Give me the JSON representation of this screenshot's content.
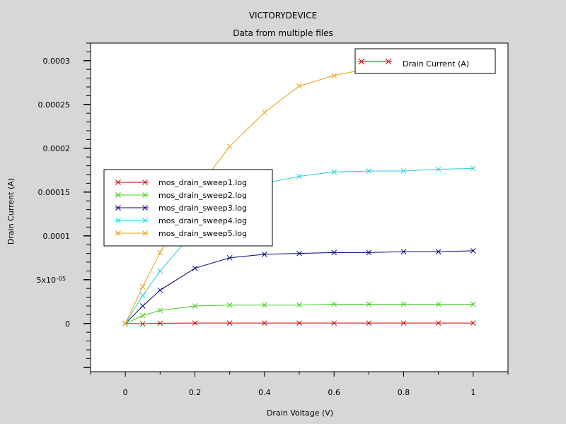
{
  "chart_data": {
    "type": "line",
    "title": "VICTORYDEVICE",
    "subtitle": "Data from multiple files",
    "xlabel": "Drain Voltage (V)",
    "ylabel": "Drain Current (A)",
    "xlim": [
      -0.1,
      1.1
    ],
    "ylim": [
      -5.5e-05,
      0.00032
    ],
    "x_ticks": [
      0,
      0.2,
      0.4,
      0.6,
      0.8,
      1
    ],
    "x_tick_labels": [
      "0",
      "0.2",
      "0.4",
      "0.6",
      "0.8",
      "1"
    ],
    "y_ticks": [
      0,
      5e-05,
      0.0001,
      0.00015,
      0.0002,
      0.00025,
      0.0003
    ],
    "y_tick_labels": [
      "0",
      "5x10",
      "0.0001",
      "0.00015",
      "0.0002",
      "0.00025",
      "0.0003"
    ],
    "y_tick_exponent": "-05",
    "grid": false,
    "legend_top_right": [
      "Drain Current (A)"
    ],
    "legend_left_placement": "center-left",
    "x": [
      0,
      0.05,
      0.1,
      0.2,
      0.3,
      0.4,
      0.5,
      0.6,
      0.7,
      0.8,
      0.9,
      1
    ],
    "series": [
      {
        "name": "mos_drain_sweep1.log",
        "color": "#cc0000",
        "values": [
          0,
          -3e-07,
          3e-07,
          5e-07,
          5e-07,
          5e-07,
          5e-07,
          5e-07,
          5e-07,
          5e-07,
          5e-07,
          5e-07
        ]
      },
      {
        "name": "mos_drain_sweep2.log",
        "color": "#44cc22",
        "values": [
          0,
          9e-06,
          1.5e-05,
          2e-05,
          2.1e-05,
          2.1e-05,
          2.1e-05,
          2.2e-05,
          2.2e-05,
          2.2e-05,
          2.2e-05,
          2.2e-05
        ]
      },
      {
        "name": "mos_drain_sweep3.log",
        "color": "#000080",
        "values": [
          0,
          2e-05,
          3.8e-05,
          6.3e-05,
          7.5e-05,
          7.9e-05,
          8e-05,
          8.1e-05,
          8.1e-05,
          8.2e-05,
          8.2e-05,
          8.3e-05
        ]
      },
      {
        "name": "mos_drain_sweep4.log",
        "color": "#22d0d8",
        "values": [
          0,
          3.2e-05,
          6e-05,
          0.000106,
          0.000143,
          0.00016,
          0.000168,
          0.000173,
          0.000174,
          0.000174,
          0.000176,
          0.000177
        ]
      },
      {
        "name": "mos_drain_sweep5.log",
        "color": "#e8a010",
        "values": [
          0,
          4.2e-05,
          8.1e-05,
          0.00015,
          0.000202,
          0.000241,
          0.000271,
          0.000283,
          0.000291,
          0.000294,
          0.000296,
          0.000297
        ]
      }
    ]
  }
}
